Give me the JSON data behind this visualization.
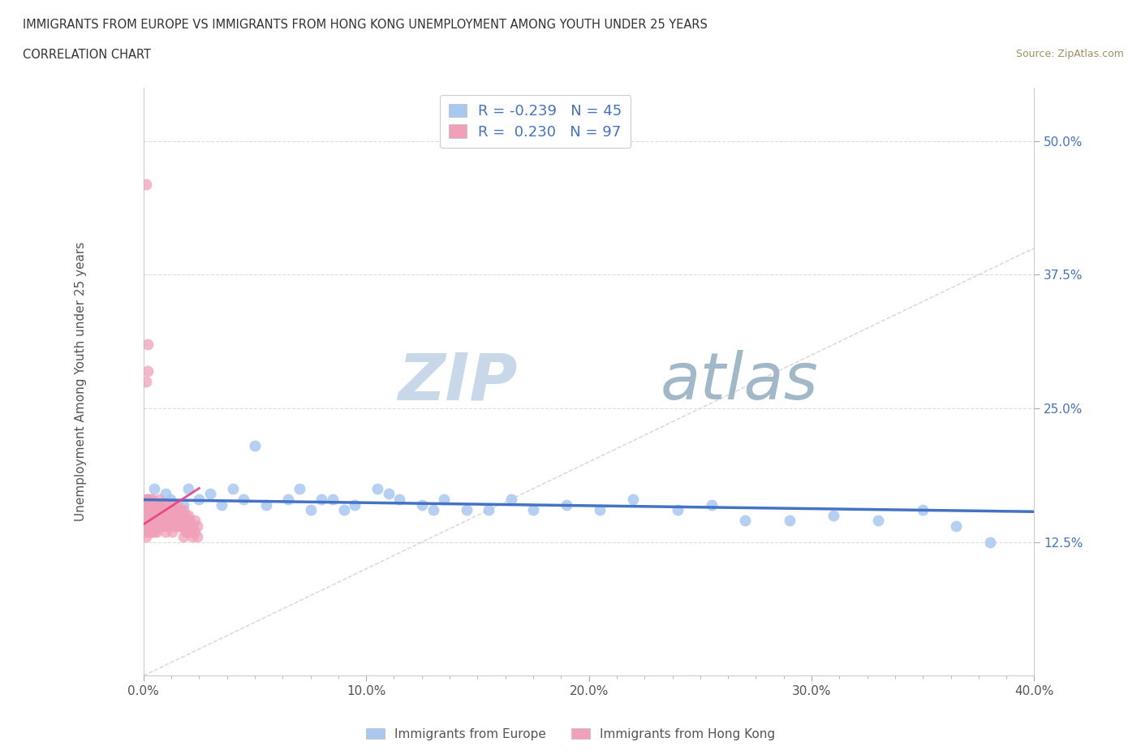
{
  "title_line1": "IMMIGRANTS FROM EUROPE VS IMMIGRANTS FROM HONG KONG UNEMPLOYMENT AMONG YOUTH UNDER 25 YEARS",
  "title_line2": "CORRELATION CHART",
  "source_text": "Source: ZipAtlas.com",
  "ylabel": "Unemployment Among Youth under 25 years",
  "xlim": [
    0.0,
    0.4
  ],
  "ylim": [
    0.0,
    0.55
  ],
  "xtick_labels": [
    "0.0%",
    "",
    "",
    "",
    "",
    "",
    "",
    "",
    "10.0%",
    "",
    "",
    "",
    "",
    "",
    "",
    "",
    "20.0%",
    "",
    "",
    "",
    "",
    "",
    "",
    "",
    "30.0%",
    "",
    "",
    "",
    "",
    "",
    "",
    "",
    "40.0%"
  ],
  "xtick_vals": [
    0.0,
    0.0125,
    0.025,
    0.0375,
    0.05,
    0.0625,
    0.075,
    0.0875,
    0.1,
    0.1125,
    0.125,
    0.1375,
    0.15,
    0.1625,
    0.175,
    0.1875,
    0.2,
    0.2125,
    0.225,
    0.2375,
    0.25,
    0.2625,
    0.275,
    0.2875,
    0.3,
    0.3125,
    0.325,
    0.3375,
    0.35,
    0.3625,
    0.375,
    0.3875,
    0.4
  ],
  "xtick_major_vals": [
    0.0,
    0.1,
    0.2,
    0.3,
    0.4
  ],
  "xtick_major_labels": [
    "0.0%",
    "10.0%",
    "20.0%",
    "30.0%",
    "40.0%"
  ],
  "ytick_labels": [
    "12.5%",
    "25.0%",
    "37.5%",
    "50.0%"
  ],
  "ytick_vals": [
    0.125,
    0.25,
    0.375,
    0.5
  ],
  "legend_europe_label": "Immigrants from Europe",
  "legend_hk_label": "Immigrants from Hong Kong",
  "europe_color": "#a8c8f0",
  "hk_color": "#f0a0b8",
  "europe_line_color": "#4472c4",
  "hk_line_color": "#e84080",
  "europe_R": -0.239,
  "europe_N": 45,
  "hk_R": 0.23,
  "hk_N": 97,
  "watermark_zip": "ZIP",
  "watermark_atlas": "atlas",
  "watermark_color_zip": "#c8d8e8",
  "watermark_color_atlas": "#a0b8c8"
}
